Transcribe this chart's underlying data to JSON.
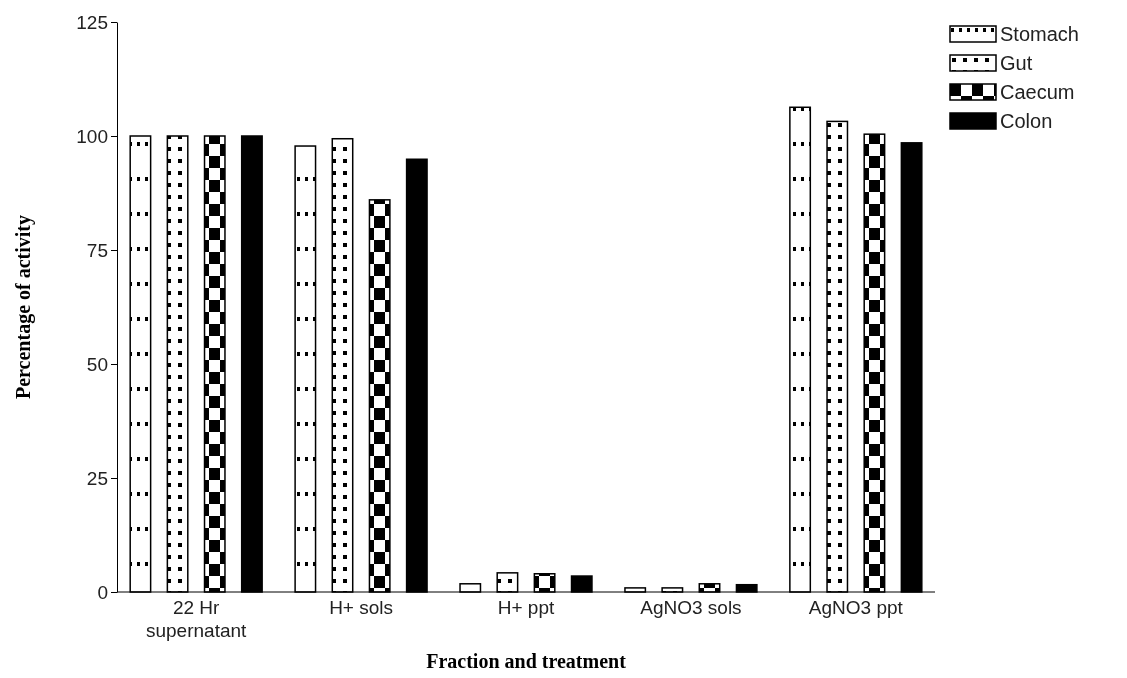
{
  "chart_data": {
    "type": "bar",
    "xlabel": "Fraction and treatment",
    "ylabel": "Percentage of activity",
    "categories": [
      "22 Hr supernatant",
      "H+ sols",
      "H+ ppt",
      "AgNO3 sols",
      "AgNO3 ppt"
    ],
    "series": [
      {
        "name": "Stomach",
        "color": "#000000",
        "values": [
          100,
          97.8,
          1.8,
          0.9,
          106.3
        ]
      },
      {
        "name": "Gut",
        "color": "#000000",
        "values": [
          100,
          99.4,
          4.2,
          0.9,
          103.2
        ]
      },
      {
        "name": "Caecum",
        "color": "#000000",
        "values": [
          100,
          86,
          4,
          1.8,
          100.4
        ]
      },
      {
        "name": "Colon",
        "color": "#000000",
        "values": [
          100,
          94.9,
          3.5,
          1.6,
          98.5
        ]
      }
    ],
    "ylim": [
      0,
      125
    ],
    "yticks": [
      0,
      25,
      50,
      75,
      100,
      125
    ],
    "grid": false,
    "legend": "top right"
  }
}
